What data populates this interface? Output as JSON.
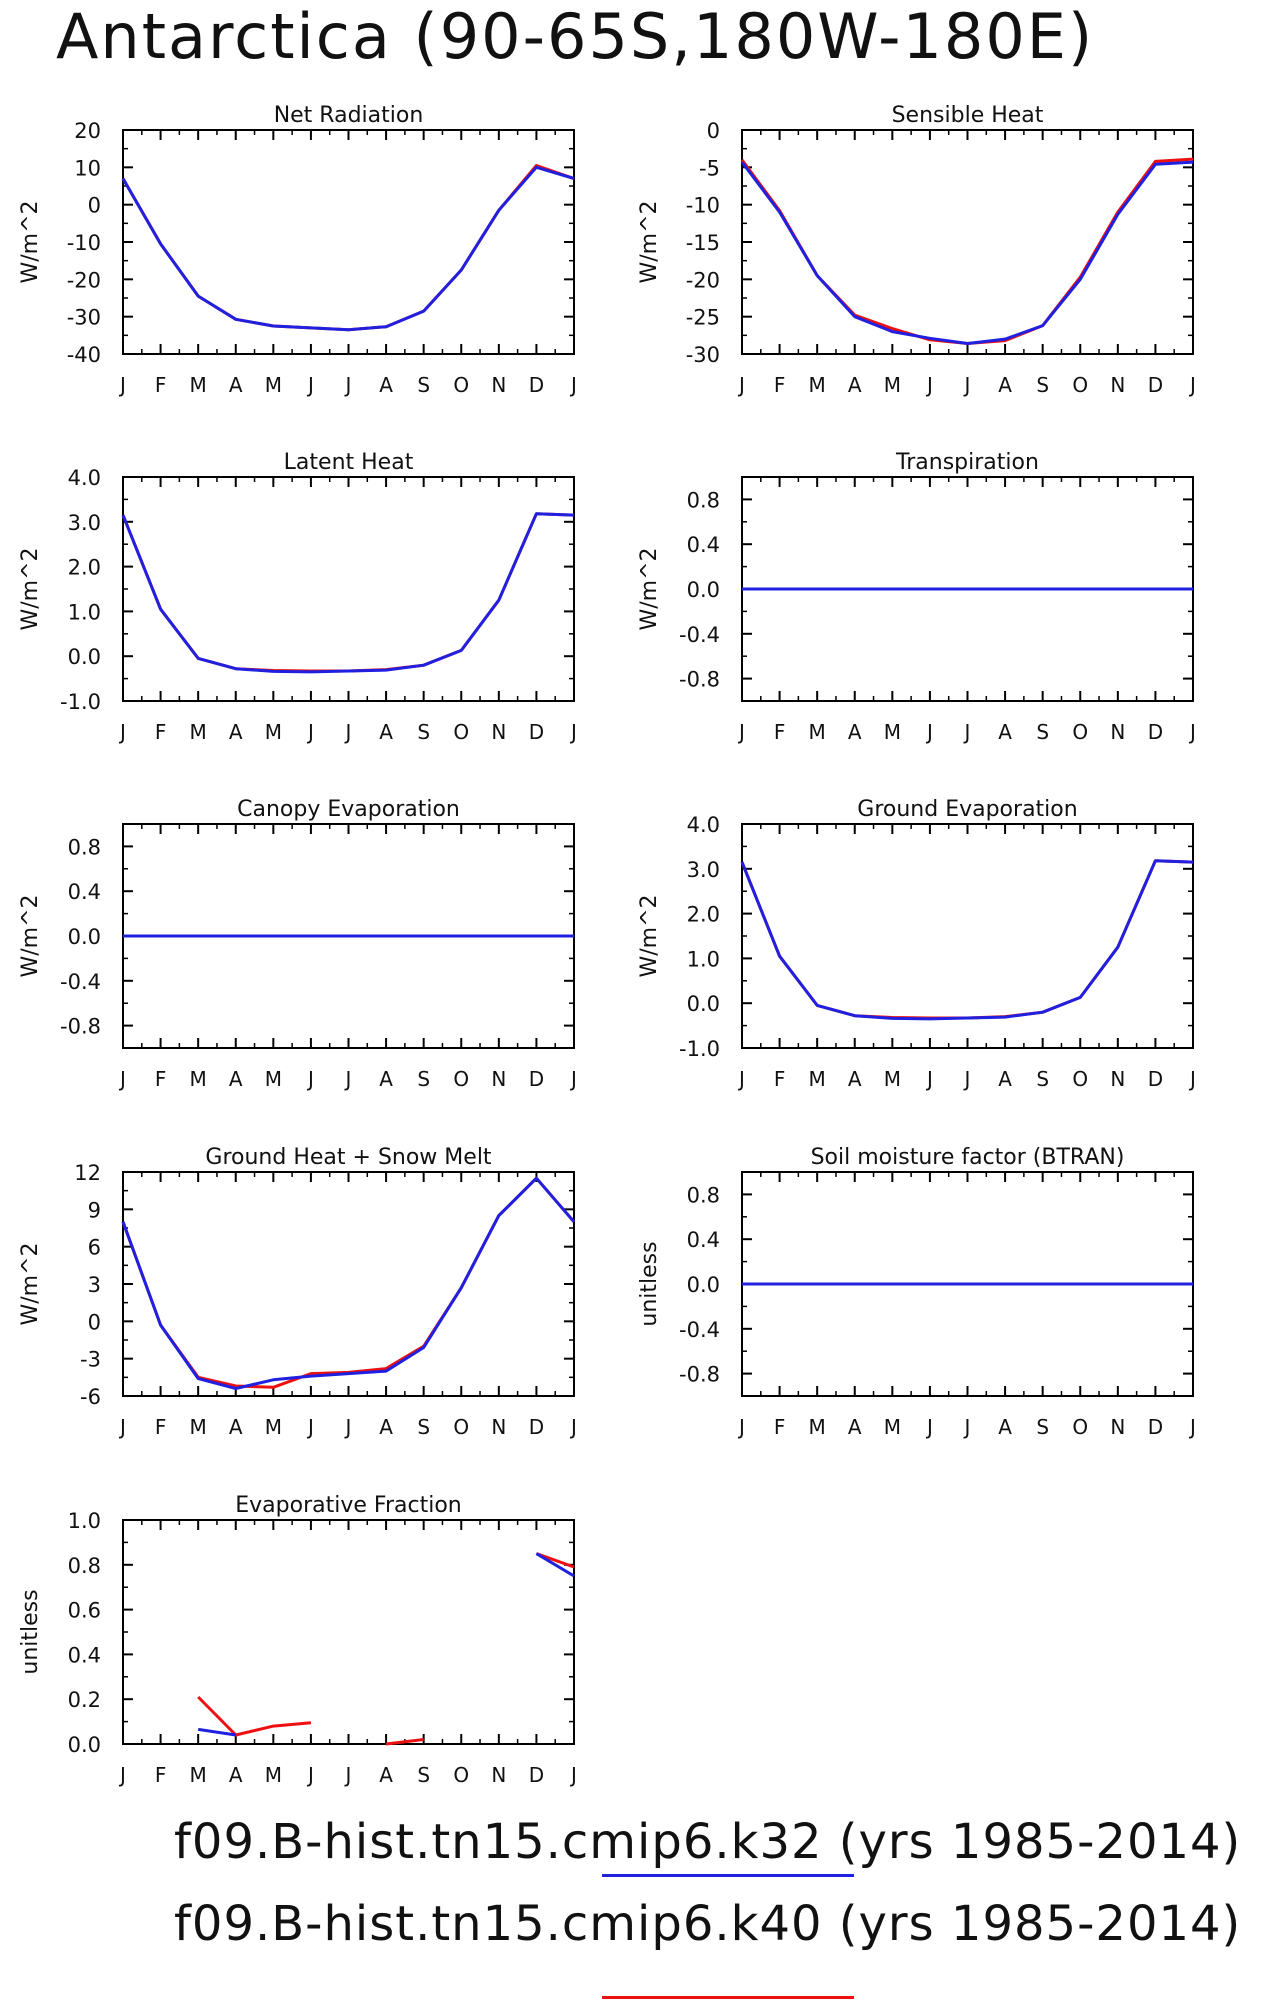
{
  "title": "Antarctica (90-65S,180W-180E)",
  "months": [
    "J",
    "F",
    "M",
    "A",
    "M",
    "J",
    "J",
    "A",
    "S",
    "O",
    "N",
    "D",
    "J"
  ],
  "legend": [
    {
      "label": "f09.B-hist.tn15.cmip6.k32 (yrs 1985-2014)",
      "color": "#2020e0"
    },
    {
      "label": "f09.B-hist.tn15.cmip6.k40 (yrs 1985-2014)",
      "color": "#ee1010"
    }
  ],
  "chart_data": [
    {
      "type": "line",
      "title": "Net Radiation",
      "ylabel": "W/m^2",
      "ylim": [
        -40,
        20
      ],
      "yticks": [
        20,
        10,
        0,
        -10,
        -20,
        -30,
        -40
      ],
      "ytick_labels": [
        "20",
        "10",
        "0",
        "-10",
        "-20",
        "-30",
        "-40"
      ],
      "series": [
        {
          "color": "#ee1010",
          "values": [
            7,
            -10.5,
            -24.5,
            -30.7,
            -32.5,
            -33,
            -33.5,
            -32.7,
            -28.5,
            -17.5,
            -1.5,
            10.5,
            7
          ]
        },
        {
          "color": "#2020e0",
          "values": [
            7,
            -10.5,
            -24.5,
            -30.7,
            -32.5,
            -33,
            -33.5,
            -32.7,
            -28.5,
            -17.5,
            -1.5,
            10,
            7
          ]
        }
      ]
    },
    {
      "type": "line",
      "title": "Sensible Heat",
      "ylabel": "W/m^2",
      "ylim": [
        -30,
        0
      ],
      "yticks": [
        0,
        -5,
        -10,
        -15,
        -20,
        -25,
        -30
      ],
      "ytick_labels": [
        "0",
        "-5",
        "-10",
        "-15",
        "-20",
        "-25",
        "-30"
      ],
      "series": [
        {
          "color": "#ee1010",
          "values": [
            -4,
            -10.8,
            -19.5,
            -24.8,
            -26.6,
            -28.1,
            -28.6,
            -28.2,
            -26.2,
            -19.7,
            -11,
            -4.2,
            -3.9
          ]
        },
        {
          "color": "#2020e0",
          "values": [
            -4.3,
            -11,
            -19.5,
            -25,
            -27,
            -27.9,
            -28.6,
            -28,
            -26.2,
            -20,
            -11.3,
            -4.6,
            -4.3
          ]
        }
      ]
    },
    {
      "type": "line",
      "title": "Latent Heat",
      "ylabel": "W/m^2",
      "ylim": [
        -1,
        4
      ],
      "yticks": [
        4,
        3,
        2,
        1,
        0,
        -1
      ],
      "ytick_labels": [
        "4.0",
        "3.0",
        "2.0",
        "1.0",
        "0.0",
        "-1.0"
      ],
      "series": [
        {
          "color": "#ee1010",
          "values": [
            3.15,
            1.05,
            -0.05,
            -0.28,
            -0.32,
            -0.33,
            -0.33,
            -0.3,
            -0.2,
            0.13,
            1.25,
            3.18,
            3.15
          ]
        },
        {
          "color": "#2020e0",
          "values": [
            3.15,
            1.05,
            -0.05,
            -0.28,
            -0.34,
            -0.35,
            -0.33,
            -0.31,
            -0.2,
            0.13,
            1.25,
            3.18,
            3.15
          ]
        }
      ]
    },
    {
      "type": "line",
      "title": "Transpiration",
      "ylabel": "W/m^2",
      "ylim": [
        -1,
        1
      ],
      "yticks": [
        0.8,
        0.4,
        0,
        -0.4,
        -0.8
      ],
      "ytick_labels": [
        "0.8",
        "0.4",
        "0.0",
        "-0.4",
        "-0.8"
      ],
      "series": [
        {
          "color": "#ee1010",
          "values": [
            0,
            0,
            0,
            0,
            0,
            0,
            0,
            0,
            0,
            0,
            0,
            0,
            0
          ]
        },
        {
          "color": "#2020e0",
          "values": [
            0,
            0,
            0,
            0,
            0,
            0,
            0,
            0,
            0,
            0,
            0,
            0,
            0
          ]
        }
      ]
    },
    {
      "type": "line",
      "title": "Canopy Evaporation",
      "ylabel": "W/m^2",
      "ylim": [
        -1,
        1
      ],
      "yticks": [
        0.8,
        0.4,
        0,
        -0.4,
        -0.8
      ],
      "ytick_labels": [
        "0.8",
        "0.4",
        "0.0",
        "-0.4",
        "-0.8"
      ],
      "series": [
        {
          "color": "#ee1010",
          "values": [
            0,
            0,
            0,
            0,
            0,
            0,
            0,
            0,
            0,
            0,
            0,
            0,
            0
          ]
        },
        {
          "color": "#2020e0",
          "values": [
            0,
            0,
            0,
            0,
            0,
            0,
            0,
            0,
            0,
            0,
            0,
            0,
            0
          ]
        }
      ]
    },
    {
      "type": "line",
      "title": "Ground Evaporation",
      "ylabel": "W/m^2",
      "ylim": [
        -1,
        4
      ],
      "yticks": [
        4,
        3,
        2,
        1,
        0,
        -1
      ],
      "ytick_labels": [
        "4.0",
        "3.0",
        "2.0",
        "1.0",
        "0.0",
        "-1.0"
      ],
      "series": [
        {
          "color": "#ee1010",
          "values": [
            3.15,
            1.05,
            -0.05,
            -0.28,
            -0.32,
            -0.33,
            -0.33,
            -0.3,
            -0.2,
            0.13,
            1.25,
            3.18,
            3.15
          ]
        },
        {
          "color": "#2020e0",
          "values": [
            3.15,
            1.05,
            -0.05,
            -0.28,
            -0.34,
            -0.35,
            -0.33,
            -0.31,
            -0.2,
            0.13,
            1.25,
            3.18,
            3.15
          ]
        }
      ]
    },
    {
      "type": "line",
      "title": "Ground Heat + Snow Melt",
      "ylabel": "W/m^2",
      "ylim": [
        -6,
        12
      ],
      "yticks": [
        12,
        9,
        6,
        3,
        0,
        -3,
        -6
      ],
      "ytick_labels": [
        "12",
        "9",
        "6",
        "3",
        "0",
        "-3",
        "-6"
      ],
      "series": [
        {
          "color": "#ee1010",
          "values": [
            8,
            -0.3,
            -4.5,
            -5.2,
            -5.3,
            -4.2,
            -4.1,
            -3.8,
            -2,
            2.7,
            8.5,
            11.5,
            8
          ]
        },
        {
          "color": "#2020e0",
          "values": [
            8,
            -0.3,
            -4.6,
            -5.4,
            -4.7,
            -4.4,
            -4.2,
            -4.0,
            -2.1,
            2.7,
            8.5,
            11.5,
            8
          ]
        }
      ]
    },
    {
      "type": "line",
      "title": "Soil moisture factor (BTRAN)",
      "ylabel": "unitless",
      "ylim": [
        -1,
        1
      ],
      "yticks": [
        0.8,
        0.4,
        0,
        -0.4,
        -0.8
      ],
      "ytick_labels": [
        "0.8",
        "0.4",
        "0.0",
        "-0.4",
        "-0.8"
      ],
      "series": [
        {
          "color": "#ee1010",
          "values": [
            0,
            0,
            0,
            0,
            0,
            0,
            0,
            0,
            0,
            0,
            0,
            0,
            0
          ]
        },
        {
          "color": "#2020e0",
          "values": [
            0,
            0,
            0,
            0,
            0,
            0,
            0,
            0,
            0,
            0,
            0,
            0,
            0
          ]
        }
      ]
    },
    {
      "type": "line",
      "title": "Evaporative Fraction",
      "ylabel": "unitless",
      "ylim": [
        0,
        1
      ],
      "yticks": [
        1,
        0.8,
        0.6,
        0.4,
        0.2,
        0
      ],
      "ytick_labels": [
        "1.0",
        "0.8",
        "0.6",
        "0.4",
        "0.2",
        "0.0"
      ],
      "series": [
        {
          "color": "#ee1010",
          "values": [
            null,
            null,
            0.21,
            0.04,
            0.08,
            0.095,
            null,
            0.0,
            0.02,
            null,
            null,
            0.85,
            0.79
          ]
        },
        {
          "color": "#2020e0",
          "values": [
            null,
            null,
            0.065,
            0.04,
            null,
            null,
            null,
            null,
            null,
            null,
            null,
            0.85,
            0.75
          ]
        }
      ]
    }
  ]
}
